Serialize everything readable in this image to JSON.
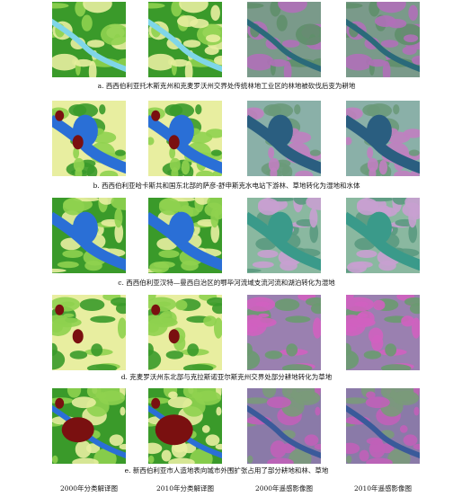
{
  "figure": {
    "rows": [
      {
        "caption": "a. 西西伯利亚托木斯克州和克麦罗沃州交界处传统林地工业区的林地被砍伐后变为耕地"
      },
      {
        "caption": "b. 西西伯利亚哈卡斯共和国东北部的萨彦-舒申斯克水电站下游林、草地转化为湿地和水体"
      },
      {
        "caption": "c. 西西伯利亚汉特—曼西自治区的鄂毕河流域支流河流和湖泊转化为湿地"
      },
      {
        "caption": "d. 克麦罗沃州东北部与克拉斯诺亚尔斯克州交界处部分耕地转化为草地"
      },
      {
        "caption": "e. 新西伯利亚市人造地表向城市外围扩张占用了部分耕地和林、草地"
      }
    ],
    "column_labels": [
      "2000年分类解译图",
      "2010年分类解译图",
      "2000年遥感影像图",
      "2010年遥感影像图"
    ]
  }
}
